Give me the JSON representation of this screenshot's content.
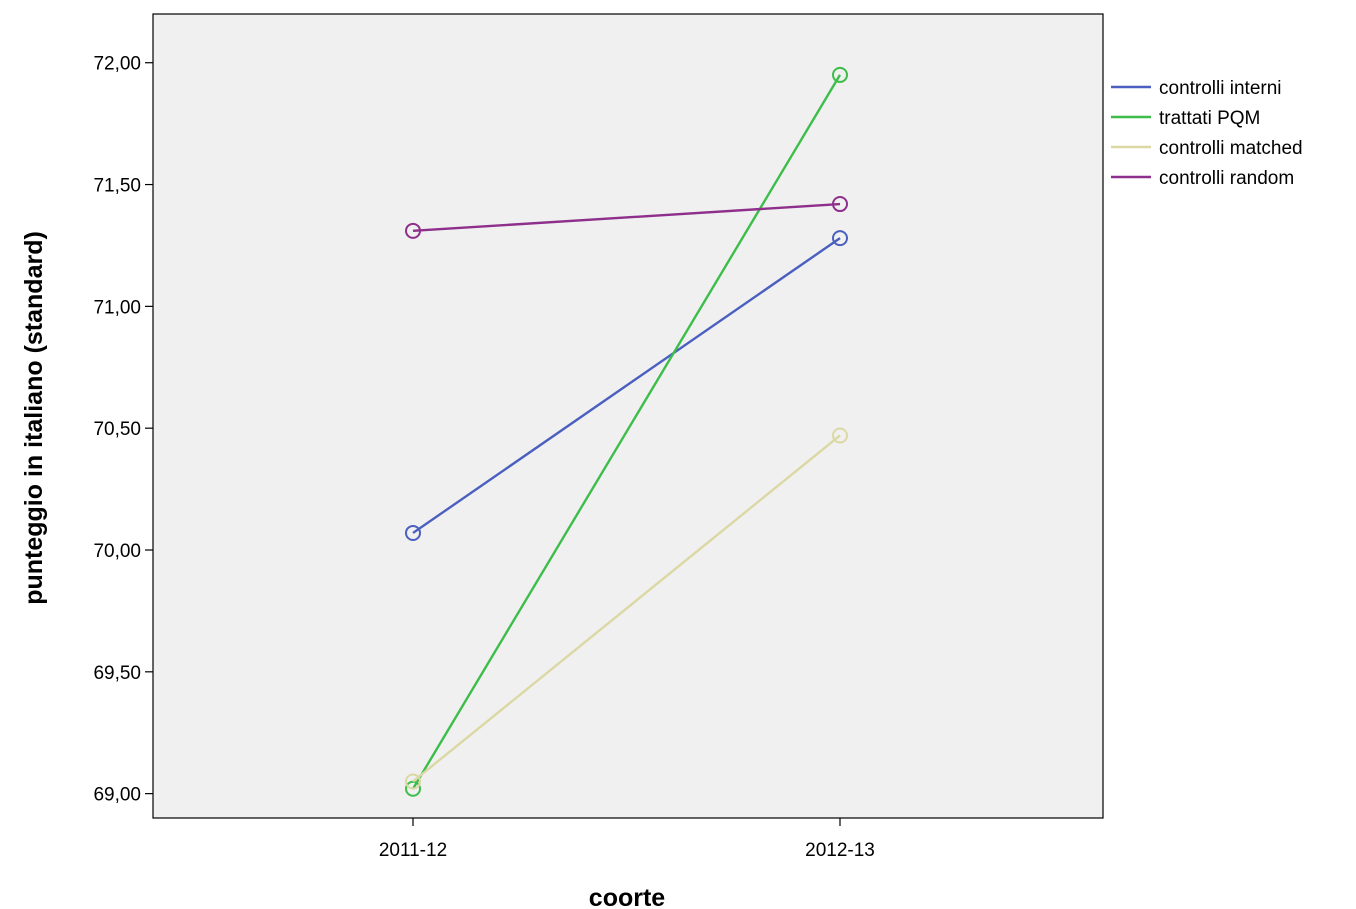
{
  "chart_data": {
    "type": "line",
    "title": "",
    "xlabel": "coorte",
    "ylabel": "punteggio in italiano (standard)",
    "categories": [
      "2011-12",
      "2012-13"
    ],
    "ylim": [
      68.9,
      72.2
    ],
    "yticks": [
      69.0,
      69.5,
      70.0,
      70.5,
      71.0,
      71.5,
      72.0
    ],
    "ytick_labels": [
      "69,00",
      "69,50",
      "70,00",
      "70,50",
      "71,00",
      "71,50",
      "72,00"
    ],
    "grid": false,
    "legend_position": "right",
    "marker": "open-circle",
    "plot_background": "#f0f0f0",
    "series": [
      {
        "name": "controlli interni",
        "color": "#4a5fbf",
        "values": [
          70.07,
          71.28
        ]
      },
      {
        "name": "trattati PQM",
        "color": "#3dbd4a",
        "values": [
          69.02,
          71.95
        ]
      },
      {
        "name": "controlli matched",
        "color": "#dcd8a4",
        "values": [
          69.05,
          70.47
        ]
      },
      {
        "name": "controlli random",
        "color": "#8e2f8c",
        "values": [
          71.31,
          71.42
        ]
      }
    ]
  }
}
